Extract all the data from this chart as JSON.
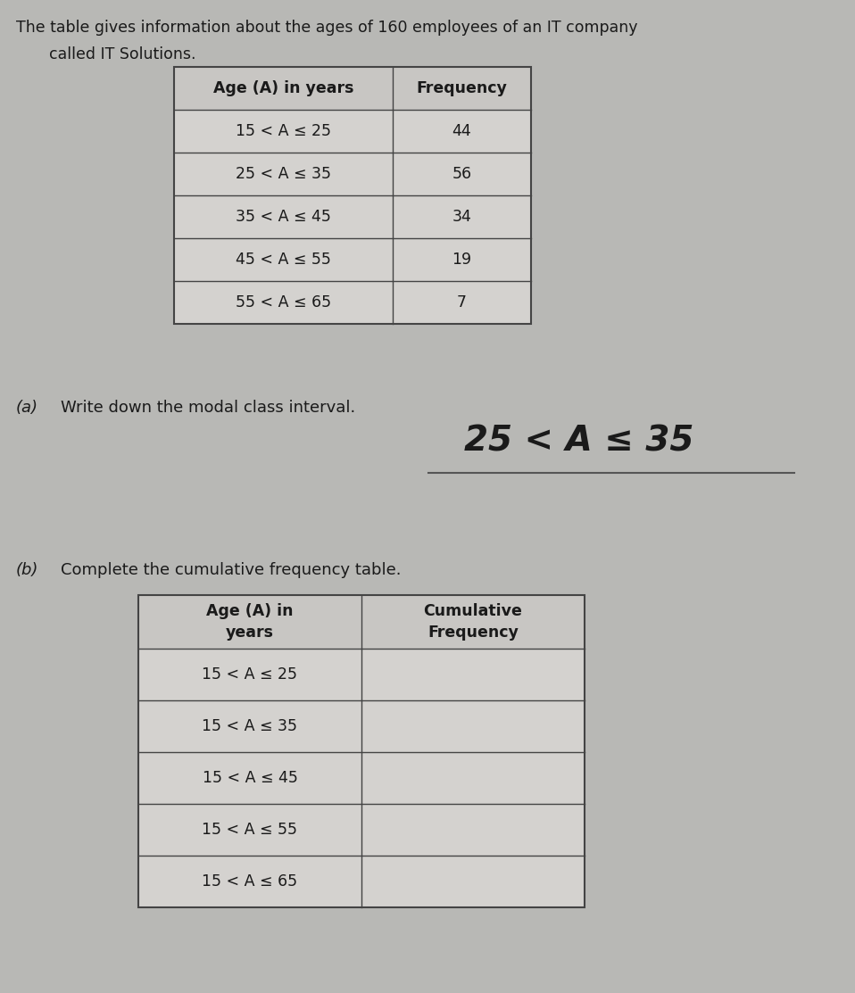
{
  "intro_text_line1": "The table gives information about the ages of 160 employees of an IT company",
  "intro_text_line2": "called IT Solutions.",
  "table1_headers": [
    "Age (A) in years",
    "Frequency"
  ],
  "table1_rows": [
    [
      "15 < A ≤ 25",
      "44"
    ],
    [
      "25 < A ≤ 35",
      "56"
    ],
    [
      "35 < A ≤ 45",
      "34"
    ],
    [
      "45 < A ≤ 55",
      "19"
    ],
    [
      "55 < A ≤ 65",
      "7"
    ]
  ],
  "part_a_label": "(a)",
  "part_a_question": "Write down the modal class interval.",
  "part_a_answer": "25 < A ≤ 35",
  "part_b_label": "(b)",
  "part_b_question": "Complete the cumulative frequency table.",
  "table2_headers": [
    "Age (A) in\nyears",
    "Cumulative\nFrequency"
  ],
  "table2_rows": [
    [
      "15 < A ≤ 25",
      ""
    ],
    [
      "15 < A ≤ 35",
      ""
    ],
    [
      "15 < A ≤ 45",
      ""
    ],
    [
      "15 < A ≤ 55",
      ""
    ],
    [
      "15 < A ≤ 65",
      ""
    ]
  ],
  "bg_color": "#b8b8b5",
  "table_bg": "#d4d2cf",
  "table_border": "#444444",
  "text_color": "#1a1a1a",
  "answer_color": "#1a1a1a",
  "header_bg": "#c8c6c3"
}
